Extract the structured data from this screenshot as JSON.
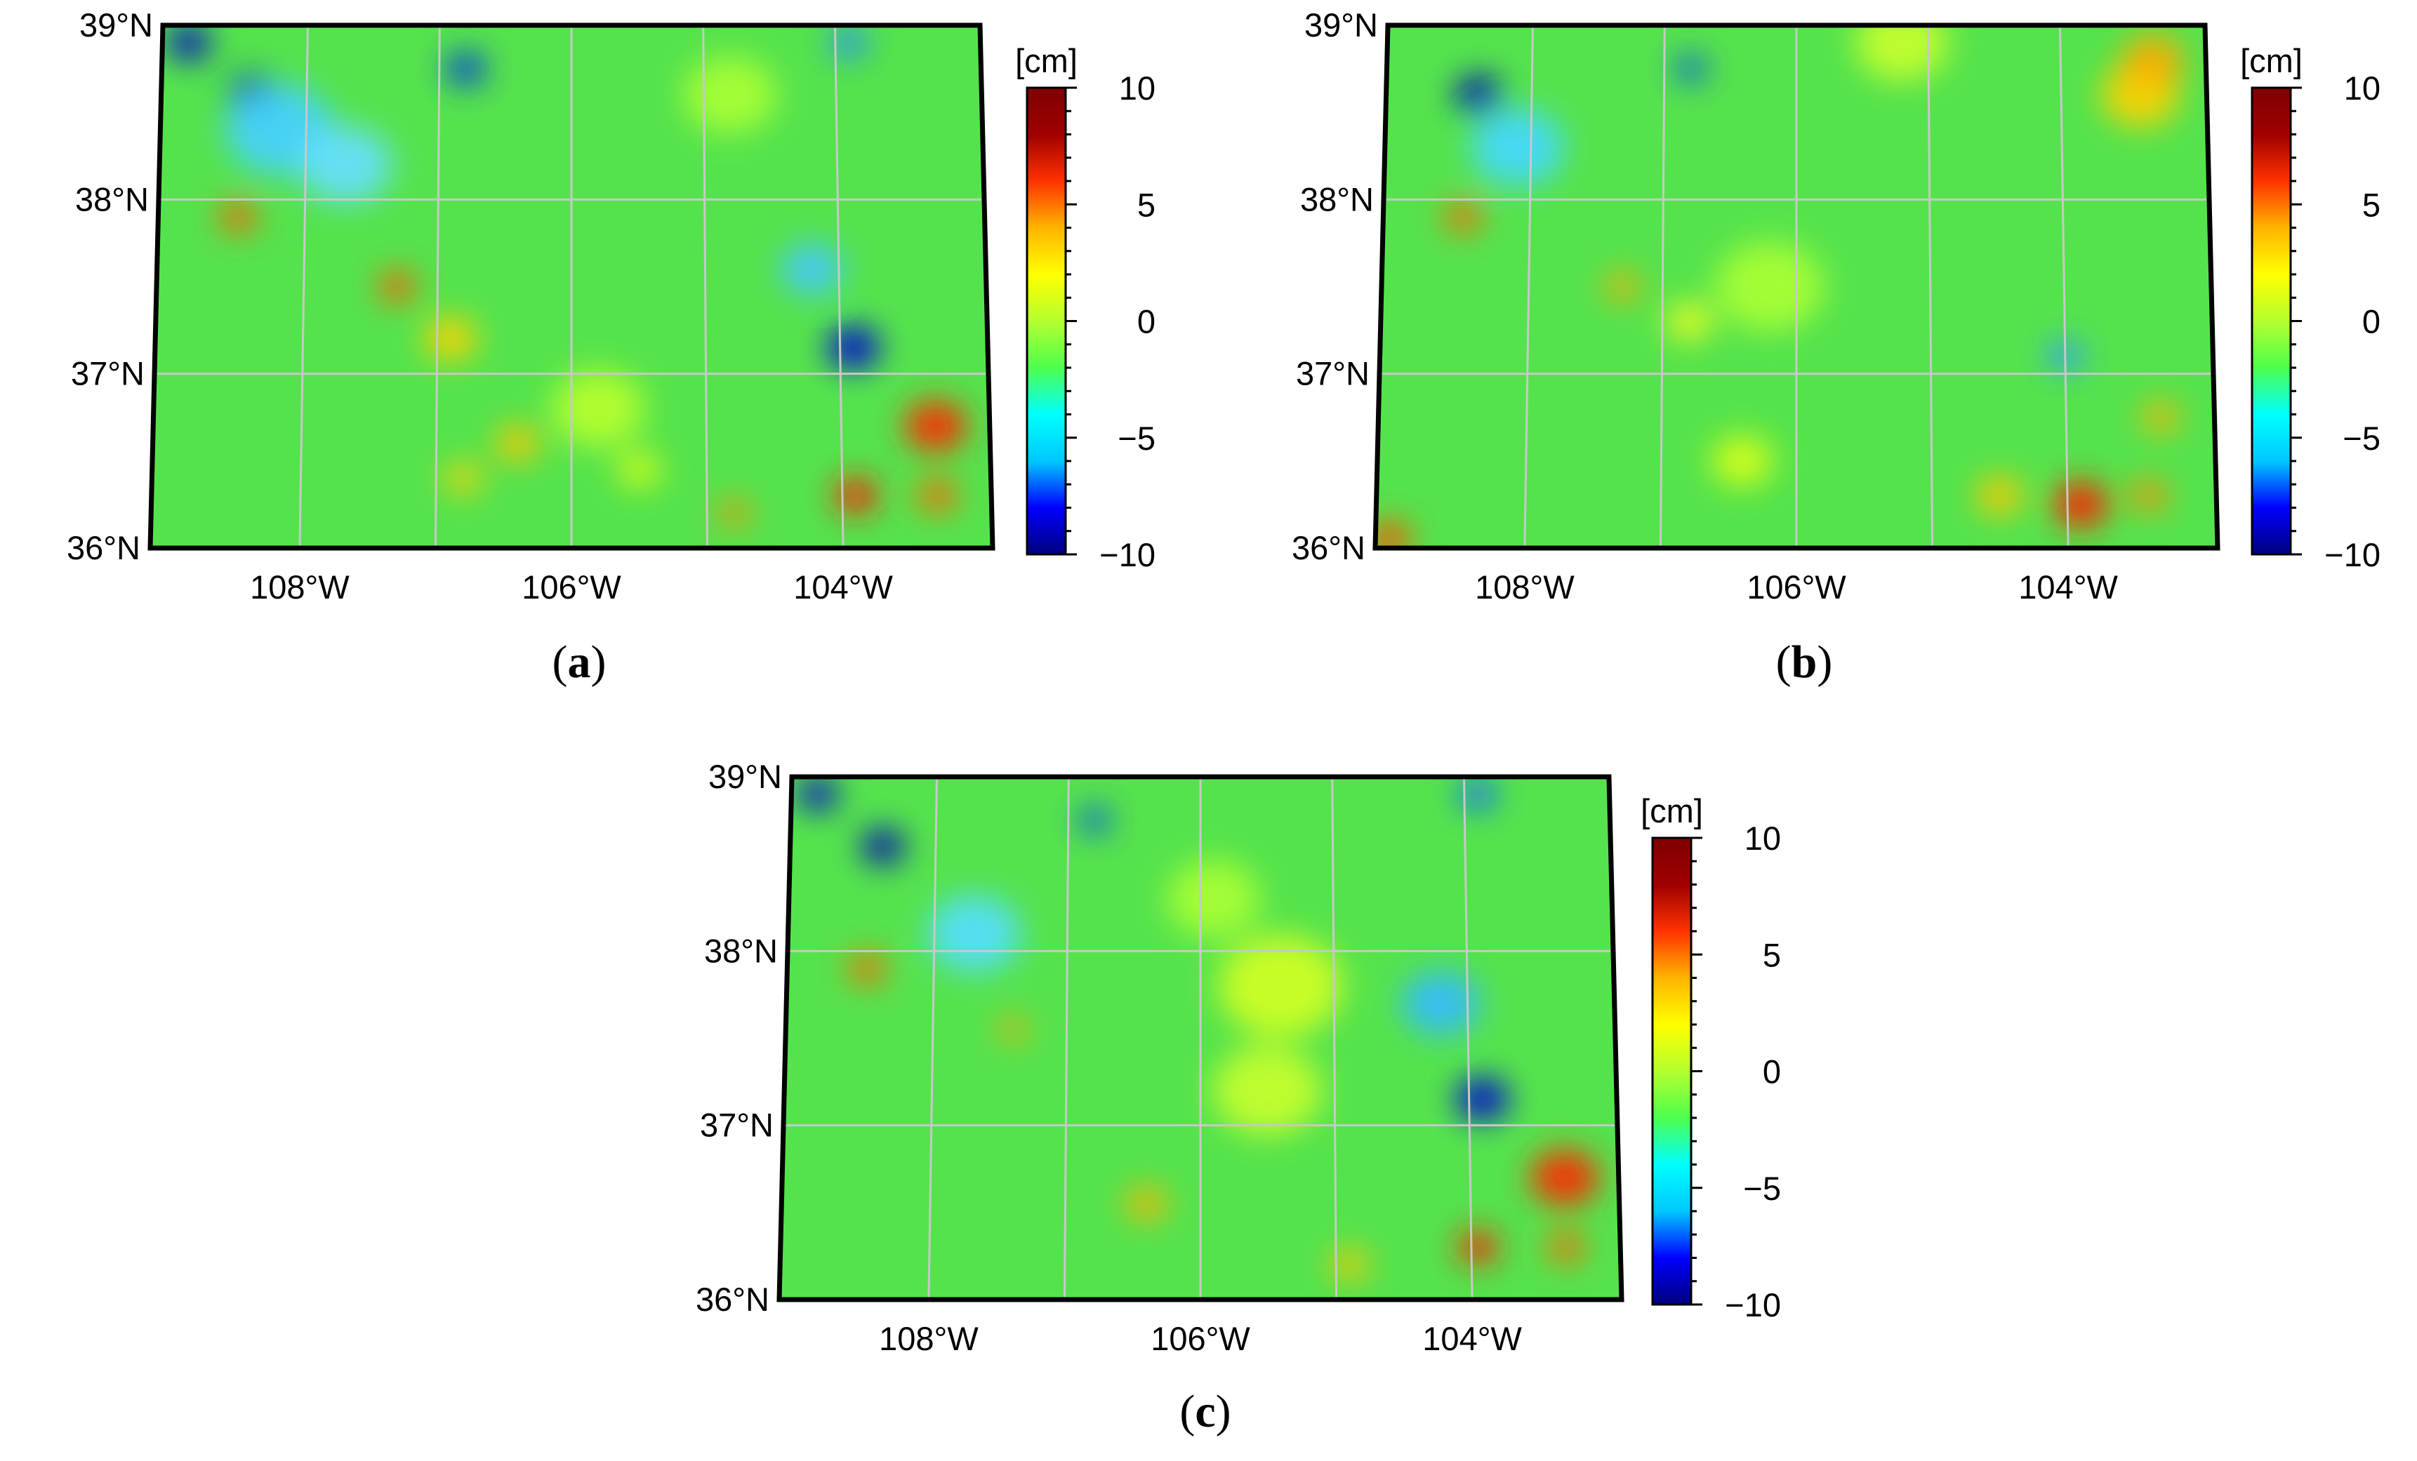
{
  "figure": {
    "colorbar": {
      "unit": "[cm]",
      "ticks": [
        "10",
        "5",
        "0",
        "−5",
        "−10"
      ],
      "stops": [
        "#00007f",
        "#0000ff",
        "#00c8ff",
        "#00ffff",
        "#4dff4d",
        "#b4ff2d",
        "#ffff00",
        "#ffb400",
        "#ff3200",
        "#a00000",
        "#7f0000"
      ]
    },
    "lat_labels": [
      "39°N",
      "38°N",
      "37°N",
      "36°N"
    ],
    "lon_labels": [
      "108°W",
      "106°W",
      "104°W"
    ],
    "background_color": "#55e34d",
    "panels": [
      {
        "id": "a",
        "caption": "a",
        "blobs": [
          {
            "lon": -108.9,
            "lat": 38.9,
            "r": 0.14,
            "c": "#0000c8"
          },
          {
            "lon": -108.4,
            "lat": 38.6,
            "r": 0.16,
            "c": "#0000b4"
          },
          {
            "lon": -106.8,
            "lat": 38.75,
            "r": 0.13,
            "c": "#0033dd"
          },
          {
            "lon": -103.9,
            "lat": 38.9,
            "r": 0.12,
            "c": "#2288ff"
          },
          {
            "lon": -108.5,
            "lat": 37.9,
            "r": 0.12,
            "c": "#ff5a00"
          },
          {
            "lon": -107.3,
            "lat": 37.5,
            "r": 0.12,
            "c": "#ff5a00"
          },
          {
            "lon": -106.9,
            "lat": 37.2,
            "r": 0.17,
            "c": "#ffd200"
          },
          {
            "lon": -106.4,
            "lat": 36.6,
            "r": 0.14,
            "c": "#ffc800"
          },
          {
            "lon": -106.8,
            "lat": 36.4,
            "r": 0.12,
            "c": "#ffd200"
          },
          {
            "lon": -105.5,
            "lat": 36.45,
            "r": 0.14,
            "c": "#d8ff1a"
          },
          {
            "lon": -104.8,
            "lat": 36.2,
            "r": 0.1,
            "c": "#ff8c00"
          },
          {
            "lon": -103.9,
            "lat": 37.15,
            "r": 0.17,
            "c": "#0000d2"
          },
          {
            "lon": -103.3,
            "lat": 36.7,
            "r": 0.2,
            "c": "#ff2800"
          },
          {
            "lon": -103.9,
            "lat": 36.3,
            "r": 0.14,
            "c": "#ff1e00"
          },
          {
            "lon": -103.3,
            "lat": 36.3,
            "r": 0.13,
            "c": "#ff6400"
          },
          {
            "lon": -108.2,
            "lat": 38.4,
            "r": 0.35,
            "c": "#44d0ff"
          },
          {
            "lon": -107.7,
            "lat": 38.2,
            "r": 0.3,
            "c": "#66e0ff"
          },
          {
            "lon": -104.2,
            "lat": 37.6,
            "r": 0.2,
            "c": "#44c8ff"
          },
          {
            "lon": -104.8,
            "lat": 38.6,
            "r": 0.3,
            "c": "#aaff33"
          },
          {
            "lon": -105.8,
            "lat": 36.8,
            "r": 0.3,
            "c": "#b8ff2d"
          }
        ]
      },
      {
        "id": "b",
        "caption": "b",
        "blobs": [
          {
            "lon": -108.4,
            "lat": 38.6,
            "r": 0.15,
            "c": "#0000b4"
          },
          {
            "lon": -106.8,
            "lat": 38.75,
            "r": 0.1,
            "c": "#1144ee"
          },
          {
            "lon": -108.5,
            "lat": 37.9,
            "r": 0.12,
            "c": "#ff6400"
          },
          {
            "lon": -107.3,
            "lat": 37.5,
            "r": 0.11,
            "c": "#ffaa00"
          },
          {
            "lon": -106.8,
            "lat": 37.3,
            "r": 0.15,
            "c": "#eeff22"
          },
          {
            "lon": -103.4,
            "lat": 38.6,
            "r": 0.25,
            "c": "#ffd200"
          },
          {
            "lon": -103.3,
            "lat": 38.8,
            "r": 0.2,
            "c": "#ffaa00"
          },
          {
            "lon": -103.9,
            "lat": 36.25,
            "r": 0.18,
            "c": "#ff1e00"
          },
          {
            "lon": -104.5,
            "lat": 36.3,
            "r": 0.15,
            "c": "#ffc800"
          },
          {
            "lon": -103.4,
            "lat": 36.3,
            "r": 0.12,
            "c": "#ff8c00"
          },
          {
            "lon": -103.3,
            "lat": 36.75,
            "r": 0.12,
            "c": "#ffb400"
          },
          {
            "lon": -104.0,
            "lat": 37.1,
            "r": 0.12,
            "c": "#3399ff"
          },
          {
            "lon": -109.0,
            "lat": 36.05,
            "r": 0.14,
            "c": "#ff5000"
          },
          {
            "lon": -105.2,
            "lat": 38.9,
            "r": 0.3,
            "c": "#c8ff2d"
          },
          {
            "lon": -106.2,
            "lat": 37.5,
            "r": 0.35,
            "c": "#aaff33"
          },
          {
            "lon": -108.1,
            "lat": 38.3,
            "r": 0.3,
            "c": "#44d8ff"
          },
          {
            "lon": -106.4,
            "lat": 36.5,
            "r": 0.2,
            "c": "#d8ff1a"
          }
        ]
      },
      {
        "id": "c",
        "caption": "c",
        "blobs": [
          {
            "lon": -108.9,
            "lat": 38.9,
            "r": 0.13,
            "c": "#0000c8"
          },
          {
            "lon": -108.4,
            "lat": 38.6,
            "r": 0.14,
            "c": "#0000b4"
          },
          {
            "lon": -106.8,
            "lat": 38.75,
            "r": 0.1,
            "c": "#1144ee"
          },
          {
            "lon": -103.9,
            "lat": 38.9,
            "r": 0.12,
            "c": "#1166ff"
          },
          {
            "lon": -108.5,
            "lat": 37.9,
            "r": 0.12,
            "c": "#ff6400"
          },
          {
            "lon": -107.4,
            "lat": 37.55,
            "r": 0.09,
            "c": "#ffaa00"
          },
          {
            "lon": -103.9,
            "lat": 37.15,
            "r": 0.17,
            "c": "#0000d2"
          },
          {
            "lon": -103.3,
            "lat": 36.7,
            "r": 0.22,
            "c": "#ff2800"
          },
          {
            "lon": -103.95,
            "lat": 36.3,
            "r": 0.13,
            "c": "#ff1e00"
          },
          {
            "lon": -103.3,
            "lat": 36.3,
            "r": 0.12,
            "c": "#ff6400"
          },
          {
            "lon": -106.4,
            "lat": 36.55,
            "r": 0.13,
            "c": "#ffb400"
          },
          {
            "lon": -105.4,
            "lat": 37.8,
            "r": 0.4,
            "c": "#d0ff22"
          },
          {
            "lon": -105.5,
            "lat": 37.2,
            "r": 0.35,
            "c": "#c8ff2d"
          },
          {
            "lon": -105.9,
            "lat": 38.3,
            "r": 0.3,
            "c": "#aaff33"
          },
          {
            "lon": -104.2,
            "lat": 37.7,
            "r": 0.25,
            "c": "#33bbff"
          },
          {
            "lon": -107.7,
            "lat": 38.1,
            "r": 0.3,
            "c": "#55ddff"
          },
          {
            "lon": -104.9,
            "lat": 36.2,
            "r": 0.12,
            "c": "#ffc800"
          }
        ]
      }
    ]
  }
}
